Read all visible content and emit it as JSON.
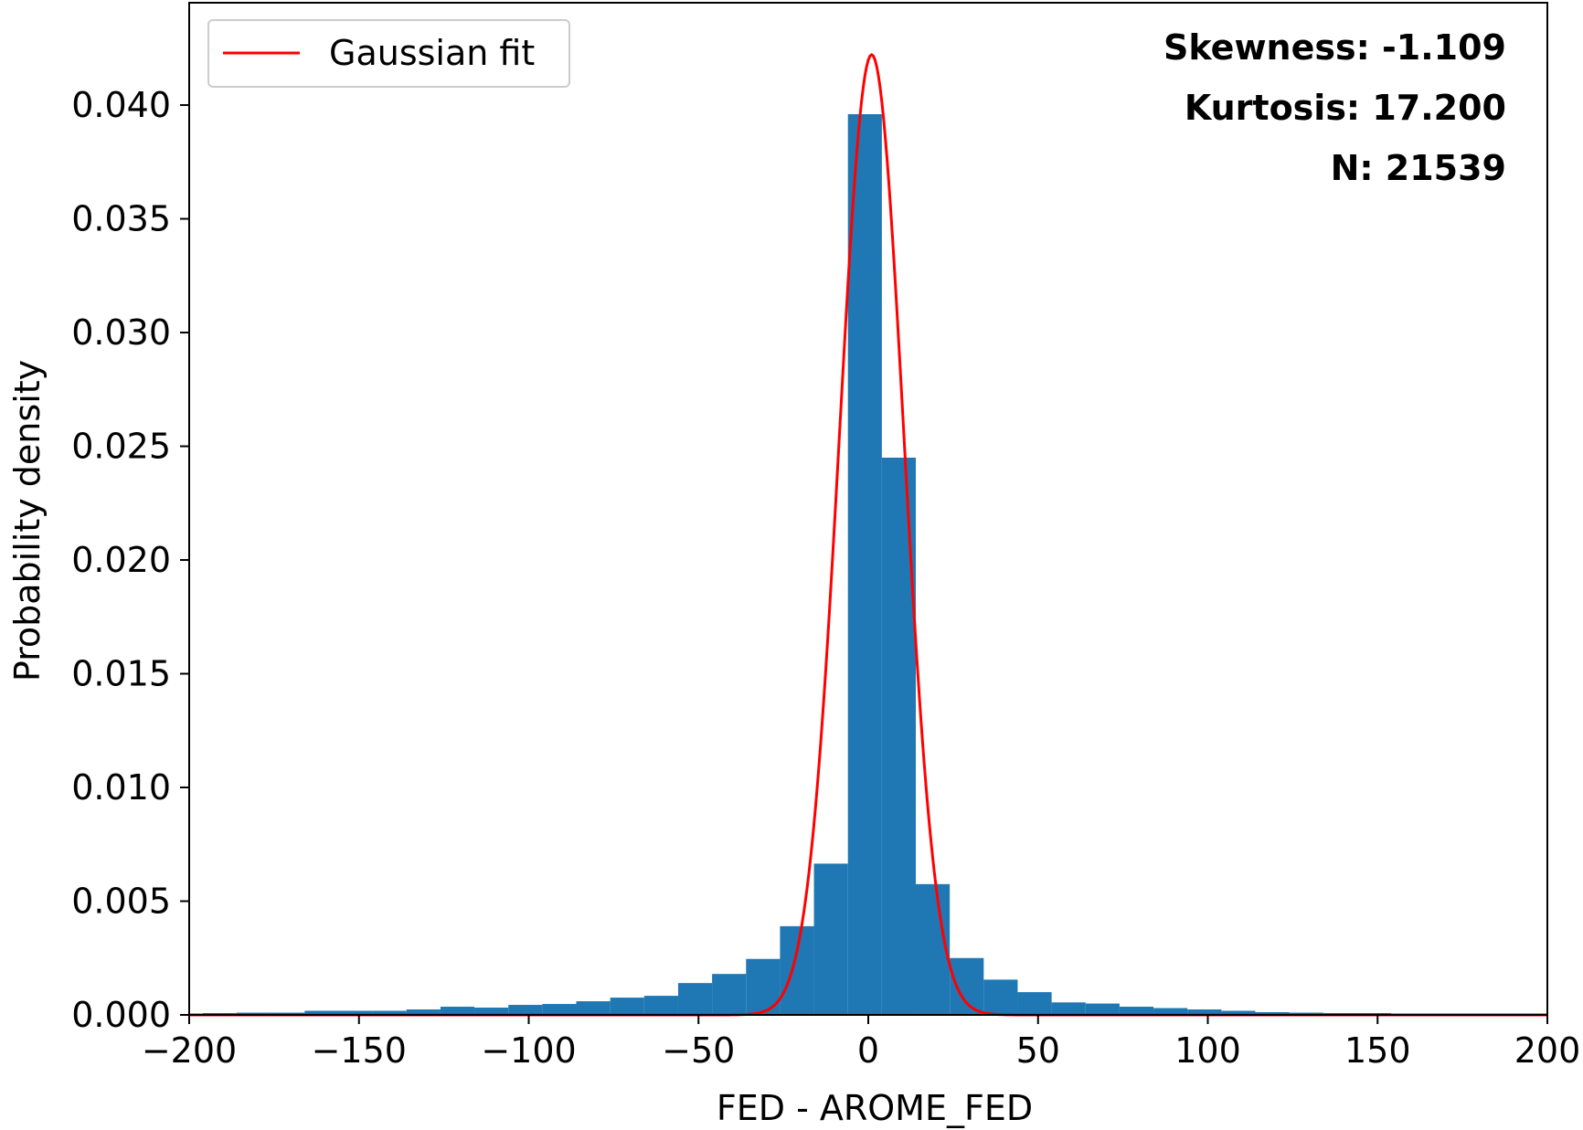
{
  "chart_data": {
    "type": "bar",
    "title": "",
    "xlabel": "FED - AROME_FED",
    "ylabel": "Probability density",
    "xlim": [
      -200,
      200
    ],
    "ylim": [
      0,
      0.0445
    ],
    "xticks": [
      -200,
      -150,
      -100,
      -50,
      0,
      50,
      100,
      150,
      200
    ],
    "xtick_labels": [
      "−200",
      "−150",
      "−100",
      "−50",
      "0",
      "50",
      "100",
      "150",
      "200"
    ],
    "yticks": [
      0,
      0.005,
      0.01,
      0.015,
      0.02,
      0.025,
      0.03,
      0.035,
      0.04
    ],
    "ytick_labels": [
      "0.000",
      "0.005",
      "0.010",
      "0.015",
      "0.020",
      "0.025",
      "0.030",
      "0.035",
      "0.040"
    ],
    "grid": false,
    "legend_position": "top-left",
    "bar_color": "#1f77b4",
    "bins": [
      {
        "x0": -216,
        "x1": -206,
        "value": 4e-05
      },
      {
        "x0": -206,
        "x1": -196,
        "value": 6e-05
      },
      {
        "x0": -196,
        "x1": -186,
        "value": 8e-05
      },
      {
        "x0": -186,
        "x1": -176,
        "value": 0.0001
      },
      {
        "x0": -176,
        "x1": -166,
        "value": 0.0001
      },
      {
        "x0": -166,
        "x1": -156,
        "value": 0.00018
      },
      {
        "x0": -156,
        "x1": -146,
        "value": 0.00018
      },
      {
        "x0": -146,
        "x1": -136,
        "value": 0.00018
      },
      {
        "x0": -136,
        "x1": -126,
        "value": 0.00024
      },
      {
        "x0": -126,
        "x1": -116,
        "value": 0.00036
      },
      {
        "x0": -116,
        "x1": -106,
        "value": 0.00032
      },
      {
        "x0": -106,
        "x1": -96,
        "value": 0.00044
      },
      {
        "x0": -96,
        "x1": -86,
        "value": 0.00048
      },
      {
        "x0": -86,
        "x1": -76,
        "value": 0.0006
      },
      {
        "x0": -76,
        "x1": -66,
        "value": 0.00076
      },
      {
        "x0": -66,
        "x1": -56,
        "value": 0.00084
      },
      {
        "x0": -56,
        "x1": -46,
        "value": 0.0014
      },
      {
        "x0": -46,
        "x1": -36,
        "value": 0.0018
      },
      {
        "x0": -36,
        "x1": -26,
        "value": 0.00246
      },
      {
        "x0": -26,
        "x1": -16,
        "value": 0.0039
      },
      {
        "x0": -16,
        "x1": -6,
        "value": 0.00665
      },
      {
        "x0": -6,
        "x1": 4,
        "value": 0.0396
      },
      {
        "x0": 4,
        "x1": 14,
        "value": 0.0245
      },
      {
        "x0": 14,
        "x1": 24,
        "value": 0.00575
      },
      {
        "x0": 24,
        "x1": 34,
        "value": 0.0025
      },
      {
        "x0": 34,
        "x1": 44,
        "value": 0.00155
      },
      {
        "x0": 44,
        "x1": 54,
        "value": 0.001
      },
      {
        "x0": 54,
        "x1": 64,
        "value": 0.00055
      },
      {
        "x0": 64,
        "x1": 74,
        "value": 0.0005
      },
      {
        "x0": 74,
        "x1": 84,
        "value": 0.00036
      },
      {
        "x0": 84,
        "x1": 94,
        "value": 0.0003
      },
      {
        "x0": 94,
        "x1": 104,
        "value": 0.00024
      },
      {
        "x0": 104,
        "x1": 114,
        "value": 0.00018
      },
      {
        "x0": 114,
        "x1": 124,
        "value": 0.00012
      },
      {
        "x0": 124,
        "x1": 134,
        "value": 0.0001
      },
      {
        "x0": 134,
        "x1": 144,
        "value": 8e-05
      },
      {
        "x0": 144,
        "x1": 154,
        "value": 8e-05
      },
      {
        "x0": 154,
        "x1": 164,
        "value": 6e-05
      },
      {
        "x0": 164,
        "x1": 174,
        "value": 4e-05
      },
      {
        "x0": 174,
        "x1": 184,
        "value": 4e-05
      },
      {
        "x0": 184,
        "x1": 194,
        "value": 4e-05
      },
      {
        "x0": 194,
        "x1": 204,
        "value": 4e-05
      }
    ],
    "series": [
      {
        "name": "Gaussian fit",
        "type": "line",
        "color": "#ff0000",
        "mean": 1.0,
        "std": 9.45,
        "x_range": [
          -200,
          200
        ]
      }
    ],
    "annotations": {
      "skewness": "Skewness: -1.109",
      "kurtosis": "Kurtosis: 17.200",
      "n": "N: 21539"
    }
  }
}
